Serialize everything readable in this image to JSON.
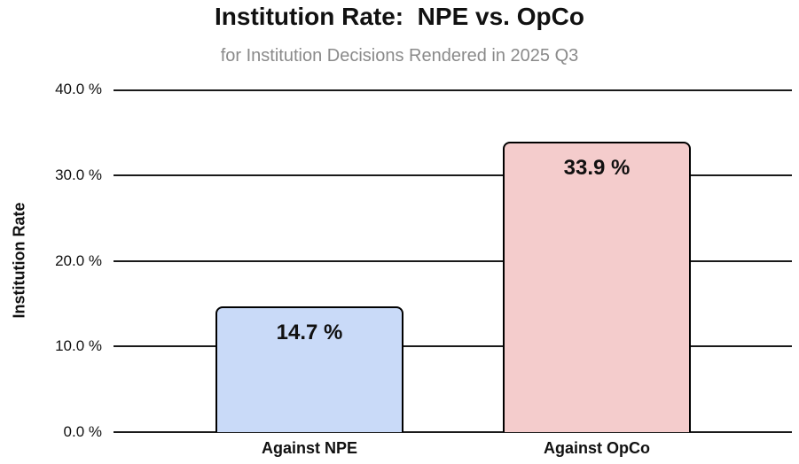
{
  "chart_data": {
    "type": "bar",
    "title": "Institution Rate:  NPE vs. OpCo",
    "subtitle": "for Institution Decisions Rendered in 2025 Q3",
    "ylabel": "Institution Rate",
    "xlabel": "",
    "categories": [
      "Against NPE",
      "Against OpCo"
    ],
    "values": [
      14.7,
      33.9
    ],
    "data_labels": [
      "14.7 %",
      "33.9 %"
    ],
    "bar_colors": [
      "#c9daf8",
      "#f4cccc"
    ],
    "bar_border_color": "#000000",
    "ylim": [
      0,
      40
    ],
    "yticks": [
      {
        "value": 0,
        "label": "0.0 %"
      },
      {
        "value": 10,
        "label": "10.0 %"
      },
      {
        "value": 20,
        "label": "20.0 %"
      },
      {
        "value": 30,
        "label": "30.0 %"
      },
      {
        "value": 40,
        "label": "40.0 %"
      }
    ],
    "grid": true,
    "legend": "none",
    "background_color": "#ffffff",
    "title_color": "#111111",
    "subtitle_color": "#8a8a8a"
  }
}
